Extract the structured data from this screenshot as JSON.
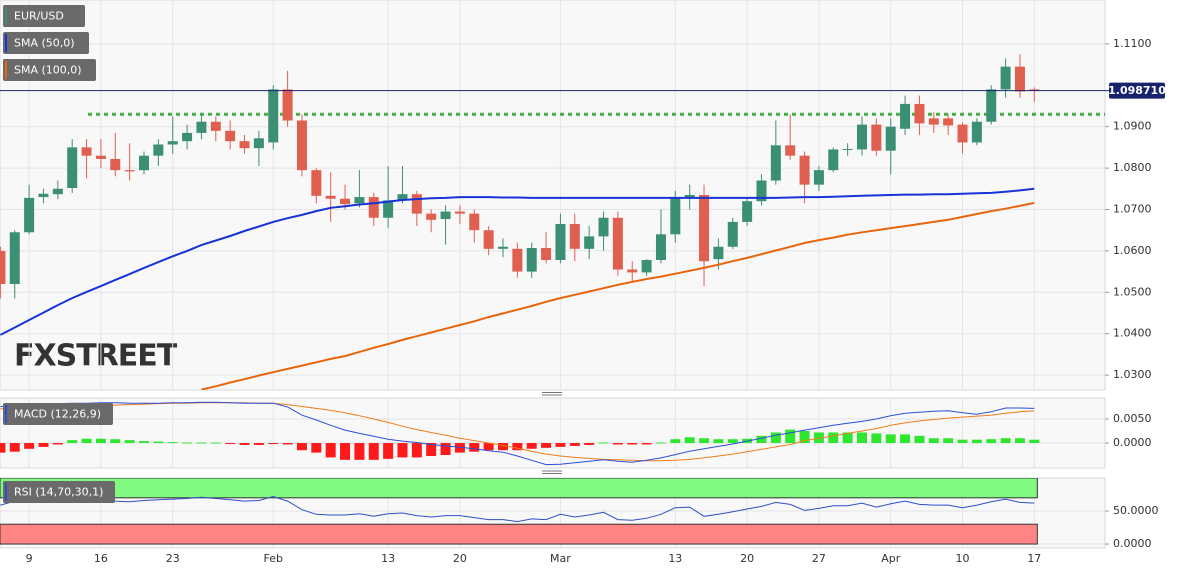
{
  "chart_data": [
    {
      "type": "candlestick",
      "title": "EUR/USD",
      "categories": [
        null,
        null,
        "9",
        null,
        null,
        null,
        null,
        "16",
        null,
        null,
        null,
        null,
        "23",
        null,
        null,
        null,
        null,
        null,
        null,
        "Feb",
        null,
        null,
        null,
        null,
        null,
        null,
        null,
        "13",
        null,
        null,
        null,
        null,
        "20",
        null,
        null,
        null,
        null,
        null,
        null,
        "Mar",
        null,
        null,
        null,
        null,
        null,
        null,
        null,
        "13",
        null,
        null,
        null,
        null,
        "20",
        null,
        null,
        null,
        null,
        "27",
        null,
        null,
        null,
        null,
        "Apr",
        null,
        null,
        null,
        null,
        "10",
        null,
        null,
        null,
        null,
        "17"
      ],
      "open": [
        1.06,
        1.052,
        1.0645,
        1.073,
        1.0737,
        1.0752,
        1.085,
        1.083,
        1.0822,
        1.0795,
        1.0795,
        1.083,
        1.0857,
        1.0865,
        1.0885,
        1.0912,
        1.089,
        1.0865,
        1.0848,
        1.0862,
        1.099,
        1.0915,
        1.0795,
        1.0733,
        1.0726,
        1.0715,
        1.073,
        1.068,
        1.0722,
        1.0737,
        1.069,
        1.0677,
        1.0695,
        1.069,
        1.065,
        1.0605,
        1.0605,
        1.055,
        1.0607,
        1.0578,
        1.0665,
        1.0605,
        1.0635,
        1.068,
        1.0555,
        1.0548,
        1.0578,
        1.064,
        1.073,
        1.0735,
        1.058,
        1.061,
        1.067,
        1.072,
        1.077,
        1.0855,
        1.083,
        1.076,
        1.0795,
        1.0845,
        1.0845,
        1.0905,
        1.0842,
        1.0895,
        1.0955,
        1.092,
        1.092,
        1.0905,
        1.0862,
        1.0912,
        1.099,
        1.1045,
        1.099
      ],
      "high": [
        1.061,
        1.065,
        1.076,
        1.075,
        1.077,
        1.087,
        1.087,
        1.087,
        1.0885,
        1.086,
        1.084,
        1.087,
        1.0925,
        1.0905,
        1.093,
        1.0925,
        1.0915,
        1.088,
        1.089,
        1.1,
        1.1035,
        1.093,
        1.08,
        1.079,
        1.076,
        1.0795,
        1.074,
        1.0805,
        1.0805,
        1.0745,
        1.07,
        1.071,
        1.071,
        1.07,
        1.066,
        1.063,
        1.062,
        1.062,
        1.0645,
        1.069,
        1.069,
        1.066,
        1.0695,
        1.0695,
        1.0575,
        1.058,
        1.07,
        1.0745,
        1.076,
        1.076,
        1.063,
        1.068,
        1.073,
        1.0785,
        1.0915,
        1.093,
        1.084,
        1.0805,
        1.085,
        1.086,
        1.0925,
        1.092,
        1.092,
        1.0975,
        1.0975,
        1.0935,
        1.093,
        1.091,
        1.092,
        1.1,
        1.1065,
        1.1075,
        1.0995
      ],
      "low": [
        1.0485,
        1.0485,
        1.064,
        1.0715,
        1.0725,
        1.074,
        1.0775,
        1.08,
        1.078,
        1.077,
        1.0785,
        1.0805,
        1.0835,
        1.0845,
        1.087,
        1.0865,
        1.0845,
        1.0835,
        1.0805,
        1.0845,
        1.09,
        1.078,
        1.0715,
        1.067,
        1.07,
        1.0705,
        1.066,
        1.0655,
        1.0715,
        1.066,
        1.0645,
        1.0615,
        1.0665,
        1.062,
        1.059,
        1.0585,
        1.0535,
        1.0535,
        1.057,
        1.057,
        1.0575,
        1.058,
        1.06,
        1.054,
        1.0525,
        1.054,
        1.057,
        1.062,
        1.07,
        1.0515,
        1.0555,
        1.0605,
        1.066,
        1.071,
        1.076,
        1.082,
        1.0715,
        1.0745,
        1.079,
        1.083,
        1.083,
        1.083,
        1.0785,
        1.088,
        1.088,
        1.0885,
        1.088,
        1.0835,
        1.0855,
        1.0905,
        1.097,
        1.097,
        1.096
      ],
      "close": [
        1.052,
        1.0645,
        1.0728,
        1.0738,
        1.075,
        1.085,
        1.083,
        1.0822,
        1.0795,
        1.0792,
        1.083,
        1.0857,
        1.0865,
        1.0885,
        1.0912,
        1.089,
        1.0865,
        1.0848,
        1.0872,
        1.099,
        1.0915,
        1.0795,
        1.0733,
        1.0726,
        1.0713,
        1.073,
        1.068,
        1.0722,
        1.0737,
        1.069,
        1.0675,
        1.0695,
        1.069,
        1.065,
        1.0605,
        1.061,
        1.055,
        1.0607,
        1.0578,
        1.0665,
        1.0605,
        1.0635,
        1.068,
        1.0555,
        1.0548,
        1.0578,
        1.064,
        1.073,
        1.0735,
        1.0575,
        1.061,
        1.067,
        1.072,
        1.077,
        1.0855,
        1.083,
        1.076,
        1.0795,
        1.0845,
        1.0846,
        1.0905,
        1.0842,
        1.09,
        1.0955,
        1.0908,
        1.0905,
        1.0903,
        1.0862,
        1.0912,
        1.099,
        1.1045,
        1.0985,
        1.0987
      ],
      "up_color": "#3b8f74",
      "down_color": "#e0604f",
      "overlays": [
        {
          "name": "SMA (50,0)",
          "color": "#1733d6",
          "values": [
            1.0397,
            1.0415,
            1.0433,
            1.0451,
            1.0469,
            1.0486,
            1.0501,
            1.0515,
            1.053,
            1.0544,
            1.0559,
            1.0573,
            1.0587,
            1.06,
            1.0614,
            1.0625,
            1.0636,
            1.0648,
            1.0659,
            1.067,
            1.0679,
            1.0687,
            1.0696,
            1.0704,
            1.0708,
            1.0712,
            1.0715,
            1.0719,
            1.0723,
            1.0725,
            1.0727,
            1.0728,
            1.073,
            1.073,
            1.073,
            1.0729,
            1.0729,
            1.0728,
            1.0728,
            1.0728,
            1.0728,
            1.0728,
            1.0728,
            1.0728,
            1.0728,
            1.0728,
            1.0728,
            1.0728,
            1.0728,
            1.0728,
            1.0728,
            1.0728,
            1.0728,
            1.0728,
            1.0728,
            1.0729,
            1.073,
            1.073,
            1.0731,
            1.0732,
            1.0733,
            1.0734,
            1.0735,
            1.0736,
            1.0736,
            1.0737,
            1.0737,
            1.0738,
            1.0739,
            1.074,
            1.0743,
            1.0746,
            1.075
          ]
        },
        {
          "name": "SMA (100,0)",
          "color": "#e8650c",
          "values": [
            null,
            null,
            null,
            null,
            null,
            null,
            null,
            null,
            null,
            null,
            null,
            null,
            null,
            null,
            1.0265,
            1.0273,
            1.0282,
            1.029,
            1.0299,
            1.0307,
            1.0315,
            1.0323,
            1.0331,
            1.0339,
            1.0346,
            1.0356,
            1.0366,
            1.0375,
            1.0385,
            1.0394,
            1.0403,
            1.0412,
            1.0421,
            1.043,
            1.044,
            1.0449,
            1.0458,
            1.0467,
            1.0477,
            1.0486,
            1.0494,
            1.0502,
            1.051,
            1.0518,
            1.0525,
            1.0532,
            1.0538,
            1.0545,
            1.0552,
            1.0559,
            1.0567,
            1.0575,
            1.0583,
            1.0592,
            1.0601,
            1.061,
            1.0619,
            1.0626,
            1.0632,
            1.0639,
            1.0645,
            1.065,
            1.0655,
            1.066,
            1.0665,
            1.067,
            1.0675,
            1.0682,
            1.0689,
            1.0696,
            1.0702,
            1.0709,
            1.0716
          ]
        }
      ],
      "level": {
        "value": 1.093,
        "color": "#45ad45"
      },
      "last_price": {
        "value": 1.09871,
        "label": "1.098710",
        "color": "#18236e"
      },
      "ylim": [
        1.0264,
        1.1206
      ],
      "yticks": [
        {
          "value": 1.11,
          "label": "1.1100"
        },
        {
          "value": 1.09,
          "label": "1.0900"
        },
        {
          "value": 1.08,
          "label": "1.0800"
        },
        {
          "value": 1.07,
          "label": "1.0700"
        },
        {
          "value": 1.06,
          "label": "1.0600"
        },
        {
          "value": 1.05,
          "label": "1.0500"
        },
        {
          "value": 1.04,
          "label": "1.0400"
        },
        {
          "value": 1.03,
          "label": "1.0300"
        }
      ],
      "grid": true,
      "watermark": "FXSTREET"
    },
    {
      "type": "macd",
      "title": "MACD (12,26,9)",
      "macd": [
        0.0076,
        0.0078,
        0.008,
        0.0081,
        0.0082,
        0.0083,
        0.0083,
        0.0084,
        0.0084,
        0.0083,
        0.0083,
        0.0083,
        0.0084,
        0.0084,
        0.0085,
        0.0085,
        0.0084,
        0.0083,
        0.0083,
        0.0083,
        0.0075,
        0.0058,
        0.0048,
        0.0037,
        0.0027,
        0.002,
        0.0014,
        0.0008,
        0.0004,
        0.0001,
        -0.0003,
        -0.0006,
        -0.0009,
        -0.0012,
        -0.0016,
        -0.0019,
        -0.0027,
        -0.0036,
        -0.0045,
        -0.0044,
        -0.0041,
        -0.0038,
        -0.0035,
        -0.0038,
        -0.004,
        -0.0036,
        -0.0031,
        -0.0024,
        -0.0017,
        -0.0012,
        -0.0007,
        -0.0002,
        0.0004,
        0.001,
        0.0016,
        0.0021,
        0.0027,
        0.0032,
        0.0037,
        0.0041,
        0.0045,
        0.005,
        0.0057,
        0.0062,
        0.0064,
        0.0066,
        0.0067,
        0.0063,
        0.006,
        0.0065,
        0.0073,
        0.0073,
        0.0072
      ],
      "signal": [
        0.0071,
        0.0072,
        0.0073,
        0.0074,
        0.0075,
        0.0076,
        0.0077,
        0.0078,
        0.0079,
        0.008,
        0.0081,
        0.0082,
        0.0083,
        0.0083,
        0.0084,
        0.0084,
        0.0084,
        0.0084,
        0.0083,
        0.0083,
        0.008,
        0.0076,
        0.0072,
        0.0068,
        0.0063,
        0.0057,
        0.005,
        0.0043,
        0.0035,
        0.0028,
        0.0022,
        0.0016,
        0.001,
        0.0005,
        0.0,
        -0.0005,
        -0.0011,
        -0.0017,
        -0.0023,
        -0.0027,
        -0.003,
        -0.0032,
        -0.0034,
        -0.0035,
        -0.0036,
        -0.0037,
        -0.0037,
        -0.0036,
        -0.0034,
        -0.0031,
        -0.0027,
        -0.0023,
        -0.0018,
        -0.0013,
        -0.0008,
        -0.0003,
        0.0005,
        0.001,
        0.0015,
        0.002,
        0.0025,
        0.003,
        0.0037,
        0.0042,
        0.0046,
        0.0049,
        0.0052,
        0.0054,
        0.0056,
        0.0058,
        0.0062,
        0.0065,
        0.0067
      ],
      "histogram": [
        -0.002,
        -0.0018,
        -0.0012,
        -0.0008,
        -0.0003,
        0.0006,
        0.0009,
        0.0009,
        0.0008,
        0.0006,
        0.0004,
        0.0003,
        0.0002,
        0.0001,
        0.0001,
        0.0001,
        -0.0001,
        -0.0004,
        -0.0004,
        -0.0001,
        -0.0003,
        -0.0015,
        -0.002,
        -0.003,
        -0.0035,
        -0.0035,
        -0.0035,
        -0.0033,
        -0.003,
        -0.003,
        -0.0027,
        -0.0025,
        -0.002,
        -0.0018,
        -0.0015,
        -0.0015,
        -0.0015,
        -0.0012,
        -0.001,
        -0.0008,
        -0.0006,
        -0.0004,
        0.0001,
        -0.0003,
        -0.0003,
        -0.0003,
        0.0001,
        0.0008,
        0.0012,
        0.001,
        0.0008,
        0.0008,
        0.0009,
        0.0015,
        0.0022,
        0.0028,
        0.0025,
        0.0022,
        0.0022,
        0.0022,
        0.0022,
        0.002,
        0.0018,
        0.0018,
        0.0015,
        0.001,
        0.001,
        0.0007,
        0.0007,
        0.0008,
        0.001,
        0.001,
        0.0007
      ],
      "macd_color": "#2d4fd8",
      "signal_color": "#f07d1a",
      "up_color": "#2ee62e",
      "down_color": "#ff1a1a",
      "ylim": [
        -0.0052,
        0.009375
      ],
      "yticks": [
        {
          "value": 0.005,
          "label": "0.0050"
        },
        {
          "value": 0,
          "label": "0.0000"
        }
      ],
      "grid": true
    },
    {
      "type": "rsi",
      "title": "RSI (14,70,30,1)",
      "values": [
        59,
        65,
        70,
        69,
        68,
        69,
        67,
        66,
        65,
        64,
        66,
        67,
        68,
        69,
        71,
        69,
        67,
        65,
        66,
        72,
        65,
        52,
        45,
        44,
        44,
        46,
        42,
        46,
        47,
        43,
        41,
        43,
        43,
        40,
        37,
        37,
        34,
        38,
        37,
        45,
        41,
        44,
        48,
        37,
        36,
        39,
        45,
        55,
        56,
        42,
        45,
        49,
        53,
        57,
        63,
        60,
        51,
        54,
        58,
        58,
        62,
        56,
        61,
        65,
        60,
        59,
        59,
        55,
        59,
        64,
        68,
        63,
        62
      ],
      "color": "#2f4fc8",
      "bands": [
        {
          "range": [
            70,
            100
          ],
          "color": "#80fa80"
        },
        {
          "range": [
            0,
            30
          ],
          "color": "#ff8585"
        }
      ],
      "ylim": [
        -6,
        100
      ],
      "yticks": [
        {
          "value": 50,
          "label": "50.0000"
        },
        {
          "value": 0,
          "label": "0.0000"
        }
      ],
      "grid": true
    }
  ]
}
